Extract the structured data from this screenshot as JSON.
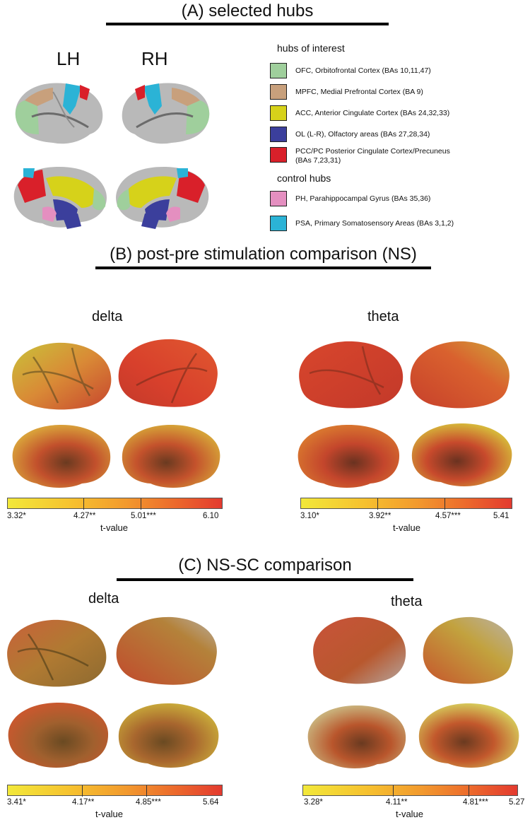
{
  "panelA": {
    "title": "(A) selected hubs",
    "lh": "LH",
    "rh": "RH",
    "hubs_heading": "hubs of interest",
    "hubs": [
      {
        "color": "#9fcf9c",
        "label": "OFC, Orbitofrontal Cortex (BAs 10,11,47)"
      },
      {
        "color": "#c8a07c",
        "label": "MPFC, Medial Prefrontal Cortex  (BA 9)"
      },
      {
        "color": "#d6d21a",
        "label": "ACC, Anterior Cingulate Cortex (BAs 24,32,33)"
      },
      {
        "color": "#3b3f9c",
        "label": "OL (L-R), Olfactory areas (BAs 27,28,34)"
      },
      {
        "color": "#d9202a",
        "label": "PCC/PC Posterior Cingulate Cortex/Precuneus\n(BAs 7,23,31)"
      }
    ],
    "control_heading": "control hubs",
    "controls": [
      {
        "color": "#e48fc0",
        "label": "PH, Parahippocampal Gyrus (BAs 35,36)"
      },
      {
        "color": "#2bb3d6",
        "label": "PSA, Primary Somatosensory Areas (BAs 3,1,2)"
      }
    ]
  },
  "panelB": {
    "title": "(B) post-pre stimulation comparison (NS)",
    "delta": {
      "band": "delta",
      "ticks": [
        "3.32*",
        "4.27**",
        "5.01***",
        "6.10"
      ],
      "label": "t-value"
    },
    "theta": {
      "band": "theta",
      "ticks": [
        "3.10*",
        "3.92**",
        "4.57***",
        "5.41"
      ],
      "label": "t-value"
    }
  },
  "panelC": {
    "title": "(C) NS-SC comparison",
    "delta": {
      "band": "delta",
      "ticks": [
        "3.41*",
        "4.17**",
        "4.85***",
        "5.64"
      ],
      "label": "t-value"
    },
    "theta": {
      "band": "theta",
      "ticks": [
        "3.28*",
        "4.11**",
        "4.81***",
        "5.27"
      ],
      "label": "t-value"
    }
  }
}
